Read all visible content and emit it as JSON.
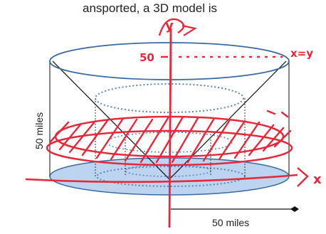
{
  "diagram": {
    "top_caption": "ansported, a 3D model is",
    "height_label": "50 miles",
    "radius_label": "50 miles",
    "annotations": {
      "y_axis": "y",
      "x_axis": "x",
      "tick_value": "50",
      "line_equation": "x=y"
    },
    "colors": {
      "cylinder_outline": "#3a6aa0",
      "base_fill": "#bcd4ef",
      "ink": "#e8283a",
      "inner_dotted": "#5a86b8"
    }
  }
}
